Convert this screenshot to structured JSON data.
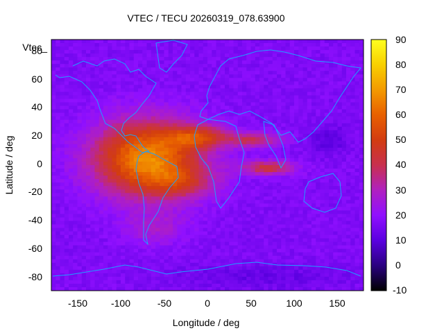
{
  "chart_data": {
    "type": "heatmap",
    "title": "VTEC / TECU 20260319_078.63900",
    "xlabel": "Longitude / deg",
    "ylabel": "Latitude / deg",
    "xlim": [
      -180,
      180
    ],
    "ylim": [
      -90,
      90
    ],
    "xticks": [
      "-150",
      "-100",
      "-50",
      "0",
      "50",
      "100",
      "150"
    ],
    "yticks": [
      "80",
      "60",
      "40",
      "20",
      "0",
      "-20",
      "-40",
      "-60",
      "-80"
    ],
    "legend": "Vtec_",
    "colorbar": {
      "min": -10,
      "max": 90,
      "ticks": [
        "90",
        "80",
        "70",
        "60",
        "50",
        "40",
        "30",
        "20",
        "10",
        "0",
        "-10"
      ]
    },
    "grid": false,
    "background_vtec": 17,
    "features": [
      {
        "name": "american-anomaly",
        "lon": -70,
        "lat": 5,
        "peak": 50,
        "sx": 60,
        "sy": 26
      },
      {
        "name": "atlantic-north-crest",
        "lon": -10,
        "lat": 20,
        "peak": 28,
        "sx": 35,
        "sy": 8
      },
      {
        "name": "south-atlantic-crest",
        "lon": -30,
        "lat": -12,
        "peak": 16,
        "sx": 40,
        "sy": 12
      },
      {
        "name": "arabian-tongue",
        "lon": 55,
        "lat": 18,
        "peak": 22,
        "sx": 30,
        "sy": 5
      },
      {
        "name": "indian-ocean-tongue",
        "lon": 70,
        "lat": -2,
        "peak": 26,
        "sx": 30,
        "sy": 5
      },
      {
        "name": "southern-low",
        "lon": -60,
        "lat": -45,
        "peak": 10,
        "sx": 35,
        "sy": 12
      },
      {
        "name": "dark-trough",
        "lon": 140,
        "lat": 18,
        "peak": -7,
        "sx": 20,
        "sy": 10
      },
      {
        "name": "polar-trough",
        "lon": 60,
        "lat": -80,
        "peak": -5,
        "sx": 100,
        "sy": 8
      }
    ]
  }
}
